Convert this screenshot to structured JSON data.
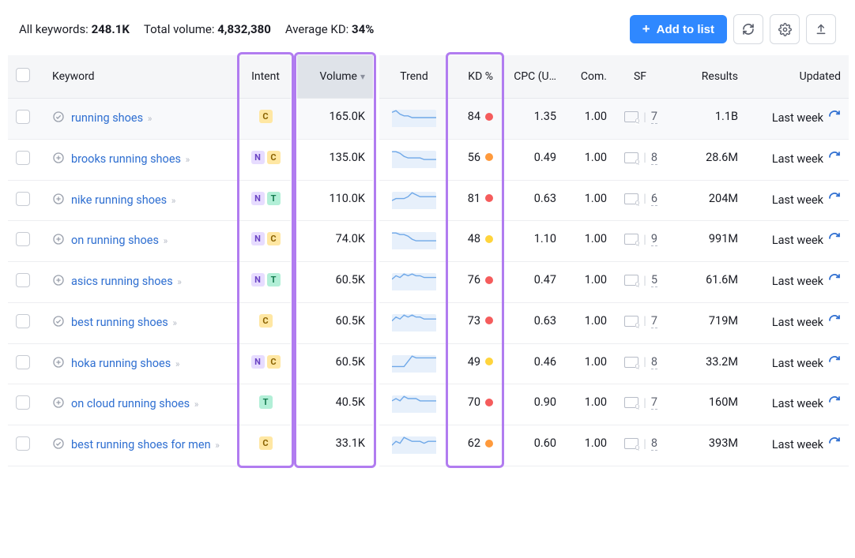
{
  "colors": {
    "accent": "#2f88ff",
    "link": "#2f6fd1",
    "border": "#e6e8ec",
    "header_bg": "#f5f6f8",
    "volume_head_bg": "#dfe3e9",
    "highlight_border": "#b17cf0",
    "kd_red": "#f55c5c",
    "kd_orange": "#ff9a3c",
    "kd_yellow": "#ffd43c",
    "trend_fill": "#e7f0fb",
    "trend_line": "#6fa8e8"
  },
  "intent_badge_styles": {
    "C": {
      "bg": "#ffe7a3",
      "fg": "#8a6200"
    },
    "N": {
      "bg": "#e7dcff",
      "fg": "#6a44c4"
    },
    "T": {
      "bg": "#b2efd7",
      "fg": "#137a4e"
    },
    "I": {
      "bg": "#cfe7ff",
      "fg": "#1a5fa8"
    }
  },
  "stats": {
    "all_keywords_label": "All keywords:",
    "all_keywords_value": "248.1K",
    "total_volume_label": "Total volume:",
    "total_volume_value": "4,832,380",
    "avg_kd_label": "Average KD:",
    "avg_kd_value": "34%"
  },
  "actions": {
    "add_to_list": "Add to list"
  },
  "columns": {
    "keyword": "Keyword",
    "intent": "Intent",
    "volume": "Volume",
    "trend": "Trend",
    "kd": "KD %",
    "cpc": "CPC (U…",
    "com": "Com.",
    "sf": "SF",
    "results": "Results",
    "updated": "Updated"
  },
  "highlighted_columns": [
    "intent",
    "volume",
    "kd"
  ],
  "sorted_column": "volume",
  "sort_direction": "desc",
  "rows": [
    {
      "keyword": "running shoes",
      "lead_icon": "check-circle",
      "intents": [
        "C"
      ],
      "volume": "165.0K",
      "trend": [
        8,
        9,
        7,
        6,
        6,
        5,
        5,
        5,
        5,
        5,
        5,
        5
      ],
      "kd": 84,
      "kd_color": "#f55c5c",
      "cpc": "1.35",
      "com": "1.00",
      "sf": "7",
      "results": "1.1B",
      "updated": "Last week"
    },
    {
      "keyword": "brooks running shoes",
      "lead_icon": "plus-circle",
      "intents": [
        "N",
        "C"
      ],
      "volume": "135.0K",
      "trend": [
        10,
        10,
        9,
        7,
        6,
        6,
        6,
        6,
        5,
        5,
        5,
        5
      ],
      "kd": 56,
      "kd_color": "#ff9a3c",
      "cpc": "0.49",
      "com": "1.00",
      "sf": "8",
      "results": "28.6M",
      "updated": "Last week"
    },
    {
      "keyword": "nike running shoes",
      "lead_icon": "plus-circle",
      "intents": [
        "N",
        "T"
      ],
      "volume": "110.0K",
      "trend": [
        4,
        5,
        5,
        5,
        6,
        8,
        7,
        6,
        6,
        6,
        6,
        6
      ],
      "kd": 81,
      "kd_color": "#f55c5c",
      "cpc": "0.63",
      "com": "1.00",
      "sf": "6",
      "results": "204M",
      "updated": "Last week"
    },
    {
      "keyword": "on running shoes",
      "lead_icon": "plus-circle",
      "intents": [
        "N",
        "C"
      ],
      "volume": "74.0K",
      "trend": [
        10,
        10,
        9,
        9,
        8,
        6,
        5,
        5,
        5,
        5,
        5,
        5
      ],
      "kd": 48,
      "kd_color": "#ffd43c",
      "cpc": "1.10",
      "com": "1.00",
      "sf": "9",
      "results": "991M",
      "updated": "Last week"
    },
    {
      "keyword": "asics running shoes",
      "lead_icon": "plus-circle",
      "intents": [
        "N",
        "T"
      ],
      "volume": "60.5K",
      "trend": [
        6,
        8,
        7,
        9,
        8,
        9,
        8,
        8,
        7,
        7,
        7,
        7
      ],
      "kd": 76,
      "kd_color": "#f55c5c",
      "cpc": "0.47",
      "com": "1.00",
      "sf": "5",
      "results": "61.6M",
      "updated": "Last week"
    },
    {
      "keyword": "best running shoes",
      "lead_icon": "check-circle",
      "intents": [
        "C"
      ],
      "volume": "60.5K",
      "trend": [
        5,
        7,
        6,
        8,
        7,
        8,
        7,
        7,
        6,
        6,
        6,
        6
      ],
      "kd": 73,
      "kd_color": "#f55c5c",
      "cpc": "0.63",
      "com": "1.00",
      "sf": "7",
      "results": "719M",
      "updated": "Last week"
    },
    {
      "keyword": "hoka running shoes",
      "lead_icon": "plus-circle",
      "intents": [
        "N",
        "C"
      ],
      "volume": "60.5K",
      "trend": [
        3,
        3,
        3,
        3,
        6,
        9,
        8,
        8,
        8,
        8,
        8,
        8
      ],
      "kd": 49,
      "kd_color": "#ffd43c",
      "cpc": "0.46",
      "com": "1.00",
      "sf": "8",
      "results": "33.2M",
      "updated": "Last week"
    },
    {
      "keyword": "on cloud running shoes",
      "lead_icon": "plus-circle",
      "intents": [
        "T"
      ],
      "volume": "40.5K",
      "trend": [
        5,
        6,
        5,
        7,
        6,
        6,
        6,
        5,
        5,
        5,
        5,
        5
      ],
      "kd": 70,
      "kd_color": "#f55c5c",
      "cpc": "0.90",
      "com": "1.00",
      "sf": "7",
      "results": "160M",
      "updated": "Last week"
    },
    {
      "keyword": "best running shoes for men",
      "lead_icon": "check-circle",
      "intents": [
        "C"
      ],
      "volume": "33.1K",
      "trend": [
        4,
        6,
        5,
        8,
        7,
        6,
        6,
        6,
        5,
        6,
        6,
        6
      ],
      "kd": 62,
      "kd_color": "#ff9a3c",
      "cpc": "0.60",
      "com": "1.00",
      "sf": "8",
      "results": "393M",
      "updated": "Last week"
    }
  ]
}
